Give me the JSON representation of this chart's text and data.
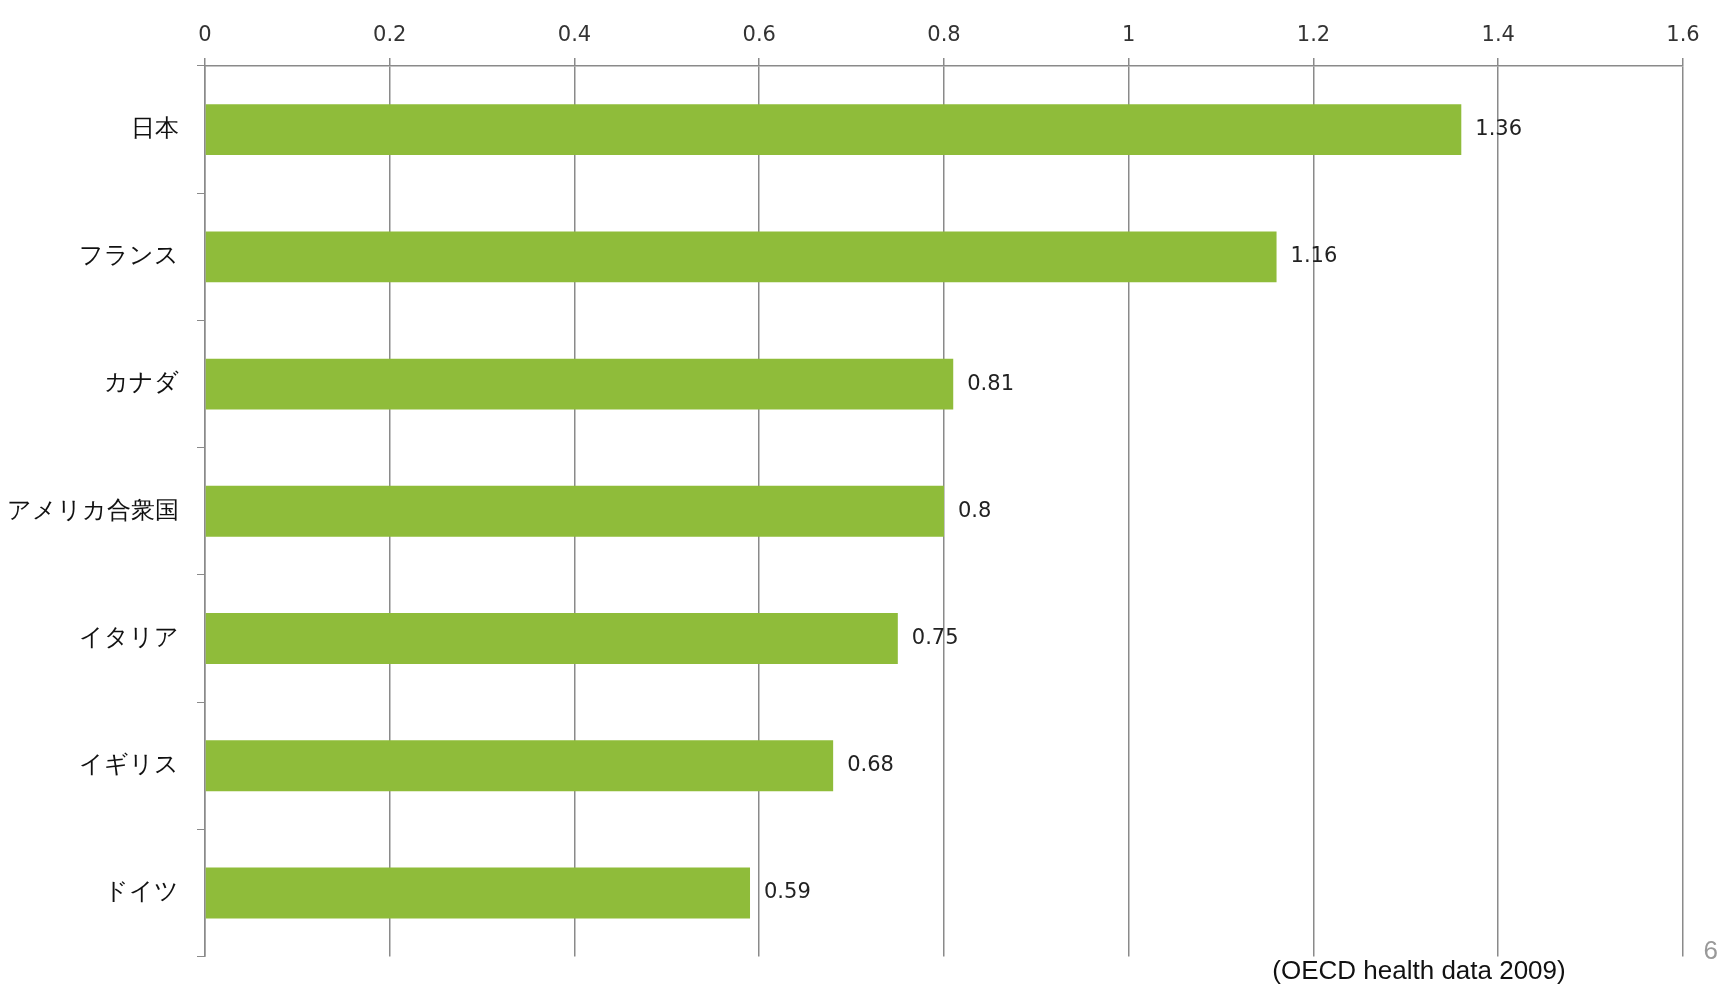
{
  "chart_data": {
    "type": "bar",
    "orientation": "horizontal",
    "categories": [
      "日本",
      "フランス",
      "カナダ",
      "アメリカ合衆国",
      "イタリア",
      "イギリス",
      "ドイツ"
    ],
    "values": [
      1.36,
      1.16,
      0.81,
      0.8,
      0.75,
      0.68,
      0.59
    ],
    "color": "#8fbc3a",
    "xlim": [
      0,
      1.6
    ],
    "xticks": [
      0,
      0.2,
      0.4,
      0.6,
      0.8,
      1,
      1.2,
      1.4,
      1.6
    ],
    "grid": "x",
    "data_labels": true,
    "legend": false,
    "annotations": [
      "(OECD health data 2009)",
      "6"
    ]
  }
}
